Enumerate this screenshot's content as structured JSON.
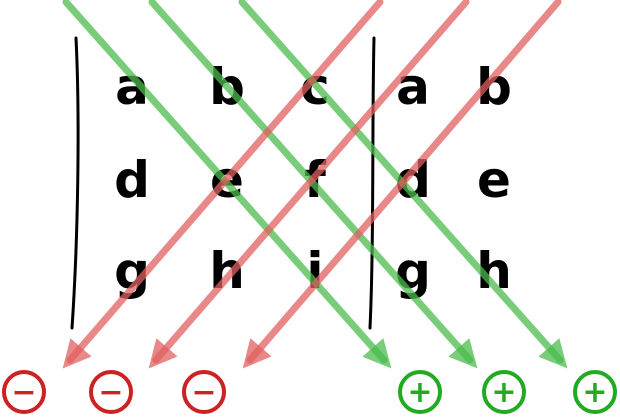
{
  "matrix": {
    "rows": [
      [
        "a",
        "b",
        "c"
      ],
      [
        "d",
        "e",
        "f"
      ],
      [
        "g",
        "h",
        "i"
      ]
    ],
    "repeated_columns": [
      [
        "a",
        "d",
        "g"
      ],
      [
        "b",
        "e",
        "h"
      ]
    ]
  },
  "signs": {
    "negative": [
      "−",
      "−",
      "−"
    ],
    "positive": [
      "+",
      "+",
      "+"
    ]
  },
  "colors": {
    "positive": "#22aa22",
    "negative": "#cc2222",
    "positive_arrow": "#4cbb4c",
    "negative_arrow": "#e06060"
  }
}
